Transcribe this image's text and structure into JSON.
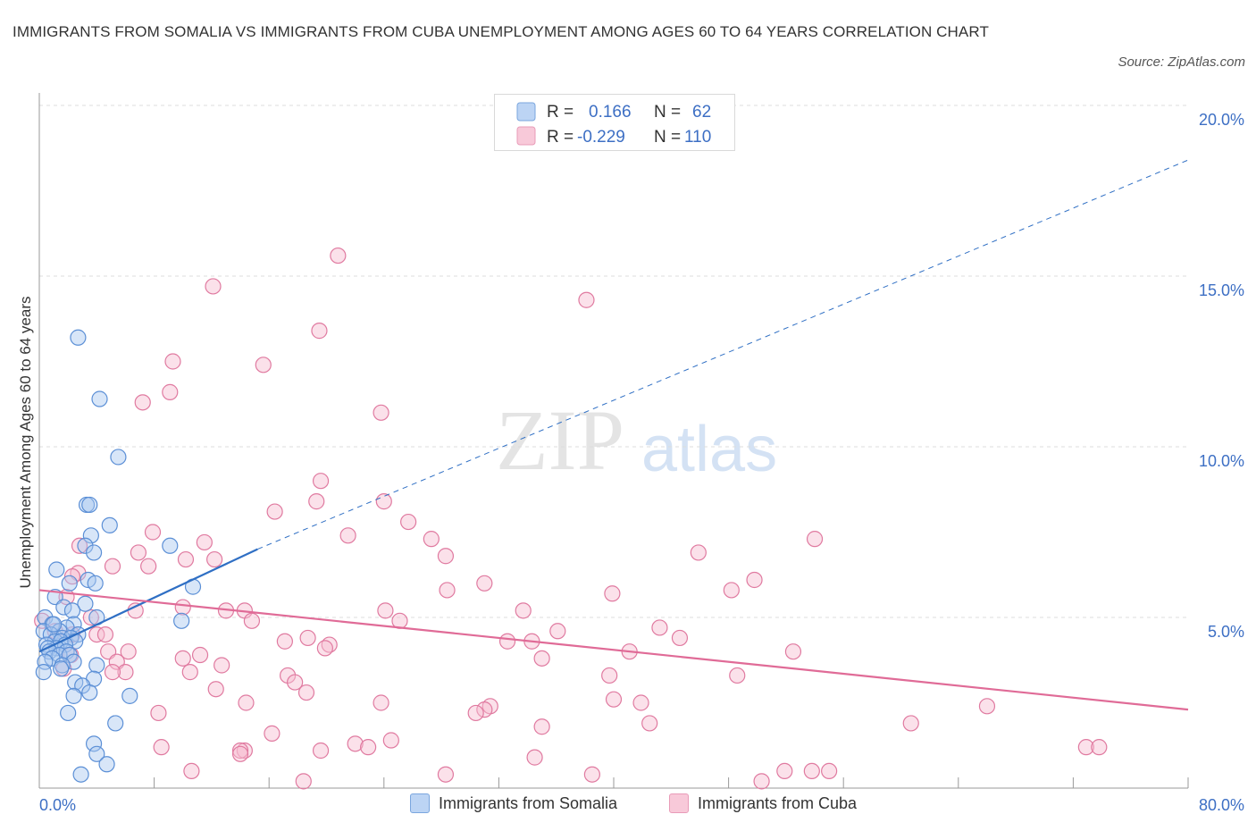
{
  "title": "IMMIGRANTS FROM SOMALIA VS IMMIGRANTS FROM CUBA UNEMPLOYMENT AMONG AGES 60 TO 64 YEARS CORRELATION CHART",
  "source": "Source: ZipAtlas.com",
  "watermark": {
    "zip": "ZIP",
    "atlas": "atlas"
  },
  "colors": {
    "somalia_fill": "#a8c8f0",
    "somalia_stroke": "#5b8fd6",
    "somalia_line": "#2f6fc4",
    "cuba_fill": "#f6bcd0",
    "cuba_stroke": "#e07aa0",
    "cuba_line": "#e06b97",
    "axis_text": "#3d6fc4",
    "grid": "#dddddd"
  },
  "legend": {
    "rows": [
      {
        "r_label": "R =",
        "r_value": "0.166",
        "n_label": "N =",
        "n_value": "62"
      },
      {
        "r_label": "R =",
        "r_value": "-0.229",
        "n_label": "N =",
        "n_value": "110"
      }
    ]
  },
  "chart_data": {
    "type": "scatter",
    "title": "IMMIGRANTS FROM SOMALIA VS IMMIGRANTS FROM CUBA UNEMPLOYMENT AMONG AGES 60 TO 64 YEARS CORRELATION CHART",
    "xlabel": "",
    "ylabel": "Unemployment Among Ages 60 to 64 years",
    "xlim": [
      0,
      80
    ],
    "ylim": [
      0,
      20
    ],
    "x_tick_labels": [
      "0.0%",
      "80.0%"
    ],
    "y_ticks": [
      5,
      10,
      15,
      20
    ],
    "y_tick_labels": [
      "5.0%",
      "10.0%",
      "15.0%",
      "20.0%"
    ],
    "series": [
      {
        "name": "Immigrants from Somalia",
        "R": 0.166,
        "N": 62,
        "trend": {
          "x0": 0,
          "y0": 4.0,
          "x1": 15.2,
          "y1": 7.0,
          "dash_x1": 80,
          "dash_y1": 18.4
        },
        "points": [
          [
            2.7,
            13.2
          ],
          [
            4.2,
            11.4
          ],
          [
            5.5,
            9.7
          ],
          [
            3.3,
            8.3
          ],
          [
            3.5,
            8.3
          ],
          [
            4.9,
            7.7
          ],
          [
            3.6,
            7.4
          ],
          [
            3.2,
            7.1
          ],
          [
            3.8,
            6.9
          ],
          [
            9.1,
            7.1
          ],
          [
            1.2,
            6.4
          ],
          [
            3.4,
            6.1
          ],
          [
            3.9,
            6.0
          ],
          [
            2.1,
            6.0
          ],
          [
            10.7,
            5.9
          ],
          [
            1.1,
            5.6
          ],
          [
            3.2,
            5.4
          ],
          [
            1.7,
            5.3
          ],
          [
            2.3,
            5.2
          ],
          [
            0.4,
            5.0
          ],
          [
            4.0,
            5.0
          ],
          [
            9.9,
            4.9
          ],
          [
            0.9,
            4.8
          ],
          [
            2.4,
            4.8
          ],
          [
            1.9,
            4.7
          ],
          [
            0.3,
            4.6
          ],
          [
            1.4,
            4.6
          ],
          [
            2.7,
            4.5
          ],
          [
            0.8,
            4.5
          ],
          [
            1.6,
            4.4
          ],
          [
            2.2,
            4.4
          ],
          [
            1.1,
            4.3
          ],
          [
            1.5,
            4.3
          ],
          [
            2.5,
            4.3
          ],
          [
            0.5,
            4.2
          ],
          [
            1.8,
            4.2
          ],
          [
            1.2,
            4.1
          ],
          [
            0.6,
            4.1
          ],
          [
            1.9,
            4.0
          ],
          [
            0.7,
            4.0
          ],
          [
            1.4,
            3.9
          ],
          [
            2.1,
            3.9
          ],
          [
            0.9,
            3.8
          ],
          [
            0.4,
            3.7
          ],
          [
            2.4,
            3.7
          ],
          [
            1.6,
            3.6
          ],
          [
            4.0,
            3.6
          ],
          [
            1.5,
            3.5
          ],
          [
            0.3,
            3.4
          ],
          [
            3.8,
            3.2
          ],
          [
            2.5,
            3.1
          ],
          [
            3.0,
            3.0
          ],
          [
            3.5,
            2.8
          ],
          [
            2.4,
            2.7
          ],
          [
            6.3,
            2.7
          ],
          [
            2.0,
            2.2
          ],
          [
            5.3,
            1.9
          ],
          [
            3.8,
            1.3
          ],
          [
            4.0,
            1.0
          ],
          [
            4.7,
            0.7
          ],
          [
            2.9,
            0.4
          ],
          [
            1.0,
            4.8
          ]
        ]
      },
      {
        "name": "Immigrants from Cuba",
        "R": -0.229,
        "N": 110,
        "trend": {
          "x0": 0,
          "y0": 5.8,
          "x1": 80,
          "y1": 2.3
        },
        "points": [
          [
            20.8,
            15.6
          ],
          [
            12.1,
            14.7
          ],
          [
            38.1,
            14.3
          ],
          [
            19.5,
            13.4
          ],
          [
            9.3,
            12.5
          ],
          [
            15.6,
            12.4
          ],
          [
            9.1,
            11.6
          ],
          [
            7.2,
            11.3
          ],
          [
            23.8,
            11.0
          ],
          [
            19.6,
            9.0
          ],
          [
            19.3,
            8.4
          ],
          [
            24.0,
            8.4
          ],
          [
            16.4,
            8.1
          ],
          [
            25.7,
            7.8
          ],
          [
            7.9,
            7.5
          ],
          [
            21.5,
            7.4
          ],
          [
            27.3,
            7.3
          ],
          [
            54.0,
            7.3
          ],
          [
            11.5,
            7.2
          ],
          [
            2.8,
            7.1
          ],
          [
            6.9,
            6.9
          ],
          [
            28.3,
            6.8
          ],
          [
            45.9,
            6.9
          ],
          [
            12.2,
            6.7
          ],
          [
            10.2,
            6.7
          ],
          [
            7.6,
            6.5
          ],
          [
            5.1,
            6.5
          ],
          [
            2.7,
            6.3
          ],
          [
            2.3,
            6.2
          ],
          [
            49.8,
            6.1
          ],
          [
            31.0,
            6.0
          ],
          [
            28.4,
            5.8
          ],
          [
            48.2,
            5.8
          ],
          [
            39.9,
            5.7
          ],
          [
            1.9,
            5.6
          ],
          [
            10.0,
            5.3
          ],
          [
            14.3,
            5.2
          ],
          [
            6.7,
            5.2
          ],
          [
            24.1,
            5.2
          ],
          [
            33.7,
            5.2
          ],
          [
            13.0,
            5.2
          ],
          [
            3.6,
            5.0
          ],
          [
            14.8,
            4.9
          ],
          [
            25.1,
            4.9
          ],
          [
            0.2,
            4.9
          ],
          [
            43.2,
            4.7
          ],
          [
            1.1,
            4.6
          ],
          [
            36.1,
            4.6
          ],
          [
            4.0,
            4.5
          ],
          [
            2.3,
            4.5
          ],
          [
            4.6,
            4.5
          ],
          [
            18.7,
            4.4
          ],
          [
            44.6,
            4.4
          ],
          [
            34.3,
            4.3
          ],
          [
            17.1,
            4.3
          ],
          [
            32.6,
            4.3
          ],
          [
            20.2,
            4.2
          ],
          [
            19.9,
            4.1
          ],
          [
            4.8,
            4.0
          ],
          [
            6.2,
            4.0
          ],
          [
            41.1,
            4.0
          ],
          [
            52.5,
            4.0
          ],
          [
            2.2,
            3.9
          ],
          [
            11.2,
            3.9
          ],
          [
            10.0,
            3.8
          ],
          [
            5.4,
            3.7
          ],
          [
            35.0,
            3.8
          ],
          [
            12.7,
            3.6
          ],
          [
            1.7,
            3.5
          ],
          [
            6.0,
            3.4
          ],
          [
            10.5,
            3.4
          ],
          [
            5.1,
            3.4
          ],
          [
            17.3,
            3.3
          ],
          [
            39.7,
            3.3
          ],
          [
            48.6,
            3.3
          ],
          [
            17.8,
            3.1
          ],
          [
            12.3,
            2.9
          ],
          [
            18.6,
            2.8
          ],
          [
            23.8,
            2.5
          ],
          [
            40.0,
            2.6
          ],
          [
            14.4,
            2.5
          ],
          [
            41.9,
            2.5
          ],
          [
            31.4,
            2.4
          ],
          [
            31.0,
            2.3
          ],
          [
            30.4,
            2.2
          ],
          [
            66.0,
            2.4
          ],
          [
            8.3,
            2.2
          ],
          [
            42.5,
            1.9
          ],
          [
            60.7,
            1.9
          ],
          [
            16.2,
            1.6
          ],
          [
            35.0,
            1.8
          ],
          [
            24.5,
            1.4
          ],
          [
            22.0,
            1.3
          ],
          [
            72.9,
            1.2
          ],
          [
            73.8,
            1.2
          ],
          [
            8.5,
            1.2
          ],
          [
            19.6,
            1.1
          ],
          [
            14.3,
            1.1
          ],
          [
            14.0,
            1.1
          ],
          [
            34.5,
            0.9
          ],
          [
            10.6,
            0.5
          ],
          [
            51.9,
            0.5
          ],
          [
            53.8,
            0.5
          ],
          [
            28.3,
            0.4
          ],
          [
            38.5,
            0.4
          ],
          [
            18.4,
            0.2
          ],
          [
            50.3,
            0.2
          ],
          [
            55.0,
            0.5
          ],
          [
            22.9,
            1.2
          ],
          [
            14.0,
            1.0
          ]
        ]
      }
    ]
  }
}
